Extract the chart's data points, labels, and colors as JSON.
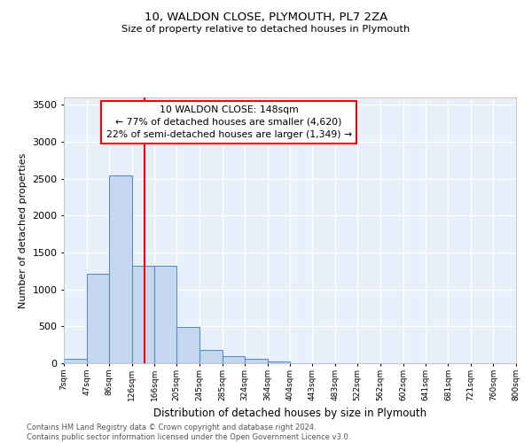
{
  "title": "10, WALDON CLOSE, PLYMOUTH, PL7 2ZA",
  "subtitle": "Size of property relative to detached houses in Plymouth",
  "xlabel": "Distribution of detached houses by size in Plymouth",
  "ylabel": "Number of detached properties",
  "bar_color": "#c5d8f0",
  "bar_edge_color": "#5b8ec4",
  "bg_color": "#e8f0fb",
  "grid_color": "#ffffff",
  "annotation_line1": "10 WALDON CLOSE: 148sqm",
  "annotation_line2": "← 77% of detached houses are smaller (4,620)",
  "annotation_line3": "22% of semi-detached houses are larger (1,349) →",
  "red_line_x": 148,
  "bin_edges": [
    7,
    47,
    86,
    126,
    166,
    205,
    245,
    285,
    324,
    364,
    404,
    443,
    483,
    522,
    562,
    602,
    641,
    681,
    721,
    760,
    800
  ],
  "bar_heights": [
    55,
    1210,
    2550,
    1320,
    1320,
    490,
    185,
    100,
    55,
    30,
    5,
    3,
    0,
    0,
    0,
    0,
    0,
    0,
    0,
    0
  ],
  "ylim": [
    0,
    3600
  ],
  "yticks": [
    0,
    500,
    1000,
    1500,
    2000,
    2500,
    3000,
    3500
  ],
  "footer_text": "Contains HM Land Registry data © Crown copyright and database right 2024.\nContains public sector information licensed under the Open Government Licence v3.0.",
  "tick_labels": [
    "7sqm",
    "47sqm",
    "86sqm",
    "126sqm",
    "166sqm",
    "205sqm",
    "245sqm",
    "285sqm",
    "324sqm",
    "364sqm",
    "404sqm",
    "443sqm",
    "483sqm",
    "522sqm",
    "562sqm",
    "602sqm",
    "641sqm",
    "681sqm",
    "721sqm",
    "760sqm",
    "800sqm"
  ]
}
